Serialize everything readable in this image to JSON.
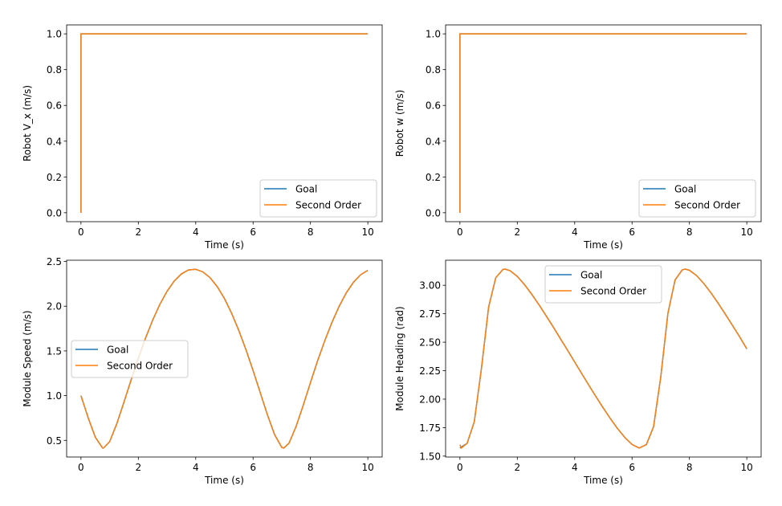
{
  "colors": {
    "Goal": "#1f77b4",
    "Second Order": "#ff7f0e"
  },
  "chart_data": [
    {
      "type": "line",
      "xlabel": "Time (s)",
      "ylabel": "Robot V_x (m/s)",
      "xlim": [
        -0.5,
        10.5
      ],
      "ylim": [
        -0.05,
        1.05
      ],
      "xticks": [
        0,
        2,
        4,
        6,
        8,
        10
      ],
      "xtick_labels": [
        "0",
        "2",
        "4",
        "6",
        "8",
        "10"
      ],
      "yticks": [
        0,
        0.2,
        0.4,
        0.6,
        0.8,
        1.0
      ],
      "ytick_labels": [
        "0.0",
        "0.2",
        "0.4",
        "0.6",
        "0.8",
        "1.0"
      ],
      "legend": "lower right",
      "grid": false,
      "series": [
        {
          "name": "Goal",
          "x": [
            0,
            0,
            10
          ],
          "y": [
            0,
            1,
            1
          ]
        },
        {
          "name": "Second Order",
          "x": [
            0,
            0,
            10
          ],
          "y": [
            0,
            1,
            1
          ]
        }
      ]
    },
    {
      "type": "line",
      "xlabel": "Time (s)",
      "ylabel": "Robot w (m/s)",
      "xlim": [
        -0.5,
        10.5
      ],
      "ylim": [
        -0.05,
        1.05
      ],
      "xticks": [
        0,
        2,
        4,
        6,
        8,
        10
      ],
      "xtick_labels": [
        "0",
        "2",
        "4",
        "6",
        "8",
        "10"
      ],
      "yticks": [
        0,
        0.2,
        0.4,
        0.6,
        0.8,
        1.0
      ],
      "ytick_labels": [
        "0.0",
        "0.2",
        "0.4",
        "0.6",
        "0.8",
        "1.0"
      ],
      "legend": "lower right",
      "grid": false,
      "series": [
        {
          "name": "Goal",
          "x": [
            0,
            0,
            10
          ],
          "y": [
            0,
            1,
            1
          ]
        },
        {
          "name": "Second Order",
          "x": [
            0,
            0,
            10
          ],
          "y": [
            0,
            1,
            1
          ]
        }
      ]
    },
    {
      "type": "line",
      "xlabel": "Time (s)",
      "ylabel": "Module Speed (m/s)",
      "xlim": [
        -0.5,
        10.5
      ],
      "ylim": [
        0.314,
        2.514
      ],
      "xticks": [
        0,
        2,
        4,
        6,
        8,
        10
      ],
      "xtick_labels": [
        "0",
        "2",
        "4",
        "6",
        "8",
        "10"
      ],
      "yticks": [
        0.5,
        1.0,
        1.5,
        2.0,
        2.5
      ],
      "ytick_labels": [
        "0.5",
        "1.0",
        "1.5",
        "2.0",
        "2.5"
      ],
      "legend": "center left",
      "grid": false,
      "series": [
        {
          "name": "Goal",
          "x": [
            0,
            0.25,
            0.5,
            0.75,
            0.785,
            1,
            1.25,
            1.5,
            1.75,
            2,
            2.25,
            2.5,
            2.75,
            3,
            3.25,
            3.5,
            3.75,
            4,
            4.25,
            4.5,
            4.75,
            5,
            5.25,
            5.5,
            5.75,
            6,
            6.25,
            6.5,
            6.75,
            7,
            7.069,
            7.25,
            7.5,
            7.75,
            8,
            8.25,
            8.5,
            8.75,
            9,
            9.25,
            9.5,
            9.75,
            10
          ],
          "y": [
            1.0,
            0.753,
            0.535,
            0.416,
            0.414,
            0.486,
            0.687,
            0.929,
            1.178,
            1.419,
            1.643,
            1.845,
            2.021,
            2.167,
            2.281,
            2.361,
            2.405,
            2.413,
            2.384,
            2.319,
            2.219,
            2.086,
            1.922,
            1.73,
            1.515,
            1.28,
            1.033,
            0.785,
            0.564,
            0.422,
            0.414,
            0.467,
            0.656,
            0.894,
            1.146,
            1.39,
            1.615,
            1.82,
            1.999,
            2.15,
            2.268,
            2.352,
            2.401
          ]
        },
        {
          "name": "Second Order",
          "x": [
            0,
            0.25,
            0.5,
            0.75,
            0.785,
            1,
            1.25,
            1.5,
            1.75,
            2,
            2.25,
            2.5,
            2.75,
            3,
            3.25,
            3.5,
            3.75,
            4,
            4.25,
            4.5,
            4.75,
            5,
            5.25,
            5.5,
            5.75,
            6,
            6.25,
            6.5,
            6.75,
            7,
            7.069,
            7.25,
            7.5,
            7.75,
            8,
            8.25,
            8.5,
            8.75,
            9,
            9.25,
            9.5,
            9.75,
            10
          ],
          "y": [
            1.0,
            0.753,
            0.535,
            0.416,
            0.414,
            0.486,
            0.687,
            0.929,
            1.178,
            1.419,
            1.643,
            1.845,
            2.021,
            2.167,
            2.281,
            2.361,
            2.405,
            2.413,
            2.384,
            2.319,
            2.219,
            2.086,
            1.922,
            1.73,
            1.515,
            1.28,
            1.033,
            0.785,
            0.564,
            0.422,
            0.414,
            0.467,
            0.656,
            0.894,
            1.146,
            1.39,
            1.615,
            1.82,
            1.999,
            2.15,
            2.268,
            2.352,
            2.401
          ]
        }
      ]
    },
    {
      "type": "line",
      "xlabel": "Time (s)",
      "ylabel": "Module Heading (rad)",
      "xlim": [
        -0.5,
        10.5
      ],
      "ylim": [
        1.492,
        3.22
      ],
      "xticks": [
        0,
        2,
        4,
        6,
        8,
        10
      ],
      "xtick_labels": [
        "0",
        "2",
        "4",
        "6",
        "8",
        "10"
      ],
      "yticks": [
        1.5,
        1.75,
        2.0,
        2.25,
        2.5,
        2.75,
        3.0
      ],
      "ytick_labels": [
        "1.50",
        "1.75",
        "2.00",
        "2.25",
        "2.50",
        "2.75",
        "3.00"
      ],
      "legend": "upper center",
      "grid": false,
      "series": [
        {
          "name": "Goal",
          "x": [
            0,
            0.25,
            0.5,
            0.75,
            1,
            1.25,
            1.5,
            1.571,
            1.75,
            2,
            2.25,
            2.5,
            2.75,
            3,
            3.25,
            3.5,
            3.75,
            4,
            4.25,
            4.5,
            4.75,
            5,
            5.25,
            5.5,
            5.75,
            6,
            6.25,
            6.5,
            6.75,
            7,
            7.25,
            7.5,
            7.75,
            7.854,
            8,
            8.25,
            8.5,
            8.75,
            9,
            9.25,
            9.5,
            9.75,
            10
          ],
          "y": [
            1.571,
            1.612,
            1.802,
            2.271,
            2.809,
            3.067,
            3.139,
            3.142,
            3.128,
            3.078,
            3.006,
            2.922,
            2.831,
            2.734,
            2.635,
            2.532,
            2.43,
            2.326,
            2.223,
            2.12,
            2.019,
            1.921,
            1.827,
            1.74,
            1.663,
            1.602,
            1.571,
            1.601,
            1.758,
            2.193,
            2.753,
            3.047,
            3.135,
            3.142,
            3.132,
            3.085,
            3.016,
            2.934,
            2.843,
            2.747,
            2.648,
            2.548,
            2.442
          ]
        },
        {
          "name": "Second Order",
          "x": [
            0,
            0.05,
            0.25,
            0.5,
            0.75,
            1,
            1.25,
            1.5,
            1.571,
            1.75,
            2,
            2.25,
            2.5,
            2.75,
            3,
            3.25,
            3.5,
            3.75,
            4,
            4.25,
            4.5,
            4.75,
            5,
            5.25,
            5.5,
            5.75,
            6,
            6.25,
            6.5,
            6.75,
            7,
            7.25,
            7.5,
            7.75,
            7.854,
            8,
            8.25,
            8.5,
            8.75,
            9,
            9.25,
            9.5,
            9.75,
            10
          ],
          "y": [
            1.6,
            1.571,
            1.612,
            1.802,
            2.271,
            2.809,
            3.067,
            3.139,
            3.142,
            3.128,
            3.078,
            3.006,
            2.922,
            2.831,
            2.734,
            2.635,
            2.532,
            2.43,
            2.326,
            2.223,
            2.12,
            2.019,
            1.921,
            1.827,
            1.74,
            1.663,
            1.602,
            1.571,
            1.601,
            1.758,
            2.193,
            2.753,
            3.047,
            3.135,
            3.142,
            3.132,
            3.085,
            3.016,
            2.934,
            2.843,
            2.747,
            2.648,
            2.548,
            2.442
          ]
        }
      ]
    }
  ]
}
